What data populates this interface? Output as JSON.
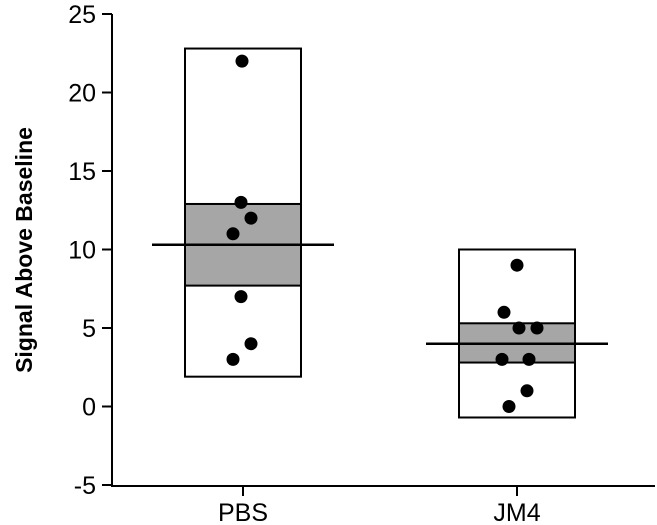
{
  "chart_data": {
    "type": "scatter",
    "title": "",
    "xlabel": "",
    "ylabel": "Signal Above Baseline",
    "ylim": [
      -5,
      25
    ],
    "yticks": [
      -5,
      0,
      5,
      10,
      15,
      20,
      25
    ],
    "ytick_labels": [
      "-5",
      "0",
      "5",
      "10",
      "15",
      "20",
      "25"
    ],
    "categories": [
      "PBS",
      "JM4"
    ],
    "groups": [
      {
        "name": "PBS",
        "range": [
          1.9,
          22.8
        ],
        "ci": [
          7.7,
          12.9
        ],
        "mean": 10.3,
        "points": [
          22,
          13,
          12,
          11,
          7,
          4,
          3
        ]
      },
      {
        "name": "JM4",
        "range": [
          -0.7,
          10
        ],
        "ci": [
          2.8,
          5.3
        ],
        "mean": 4,
        "points": [
          9,
          6,
          5,
          5,
          3,
          3,
          1,
          0
        ]
      }
    ],
    "colors": {
      "box_fill": "#ffffff",
      "ci_fill": "#a6a6a6",
      "stroke": "#000000",
      "point": "#000000"
    }
  }
}
